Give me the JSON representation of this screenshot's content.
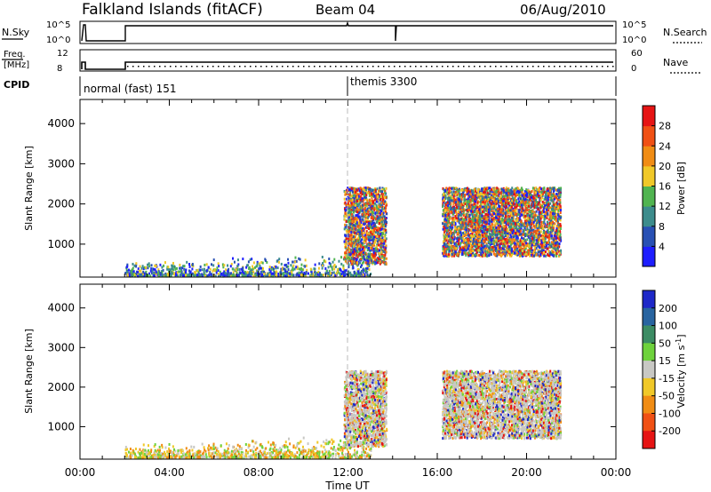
{
  "header": {
    "station": "Falkland Islands (fitACF)",
    "beam": "Beam 04",
    "date": "06/Aug/2010"
  },
  "panels": {
    "nsky": {
      "left_label": "N.Sky",
      "right_label": "N.Search",
      "tick_top": "10^5",
      "tick_bottom": "10^0",
      "right_tick_top": "10^5",
      "right_tick_bottom": "10^0"
    },
    "freq": {
      "left_label_1": "Freq.",
      "left_label_2": "[MHz]",
      "right_label": "Nave",
      "tick_top": "12",
      "tick_bottom": "8",
      "right_tick_top": "60",
      "right_tick_bottom": "0"
    },
    "cpid": {
      "label": "CPID",
      "modes": [
        {
          "name": "normal (fast) 151",
          "start_hour": 0
        },
        {
          "name": "themis 3300",
          "start_hour": 12
        }
      ]
    }
  },
  "chart_data": [
    {
      "type": "heatmap",
      "title": "Power",
      "ylabel": "Slant Range [km]",
      "xlabel": "",
      "xlim": [
        0,
        24
      ],
      "ylim": [
        180,
        4600
      ],
      "yticks": [
        1000,
        2000,
        3000,
        4000
      ],
      "colorbar": {
        "label": "Power [dB]",
        "ticks": [
          4,
          8,
          12,
          16,
          20,
          24,
          28
        ],
        "range": [
          0,
          32
        ],
        "colors": [
          "#1e1eff",
          "#2850b4",
          "#3c8c8c",
          "#50b450",
          "#f0c828",
          "#f08c14",
          "#f05014",
          "#e61414"
        ]
      }
    },
    {
      "type": "heatmap",
      "title": "Velocity",
      "ylabel": "Slant Range [km]",
      "xlabel": "Time UT",
      "xlim": [
        0,
        24
      ],
      "ylim": [
        180,
        4600
      ],
      "yticks": [
        1000,
        2000,
        3000,
        4000
      ],
      "xticks": [
        "00:00",
        "04:00",
        "08:00",
        "12:00",
        "16:00",
        "20:00",
        "00:00"
      ],
      "colorbar": {
        "label": "Velocity [m s^-1]",
        "ticks": [
          200,
          100,
          50,
          15,
          -15,
          -50,
          -100,
          -200
        ],
        "colors": [
          "#1e28c8",
          "#2864a0",
          "#3c8c64",
          "#6ed23c",
          "#c8c8c4",
          "#f0c828",
          "#f08c14",
          "#f05014",
          "#e61414"
        ]
      }
    }
  ]
}
